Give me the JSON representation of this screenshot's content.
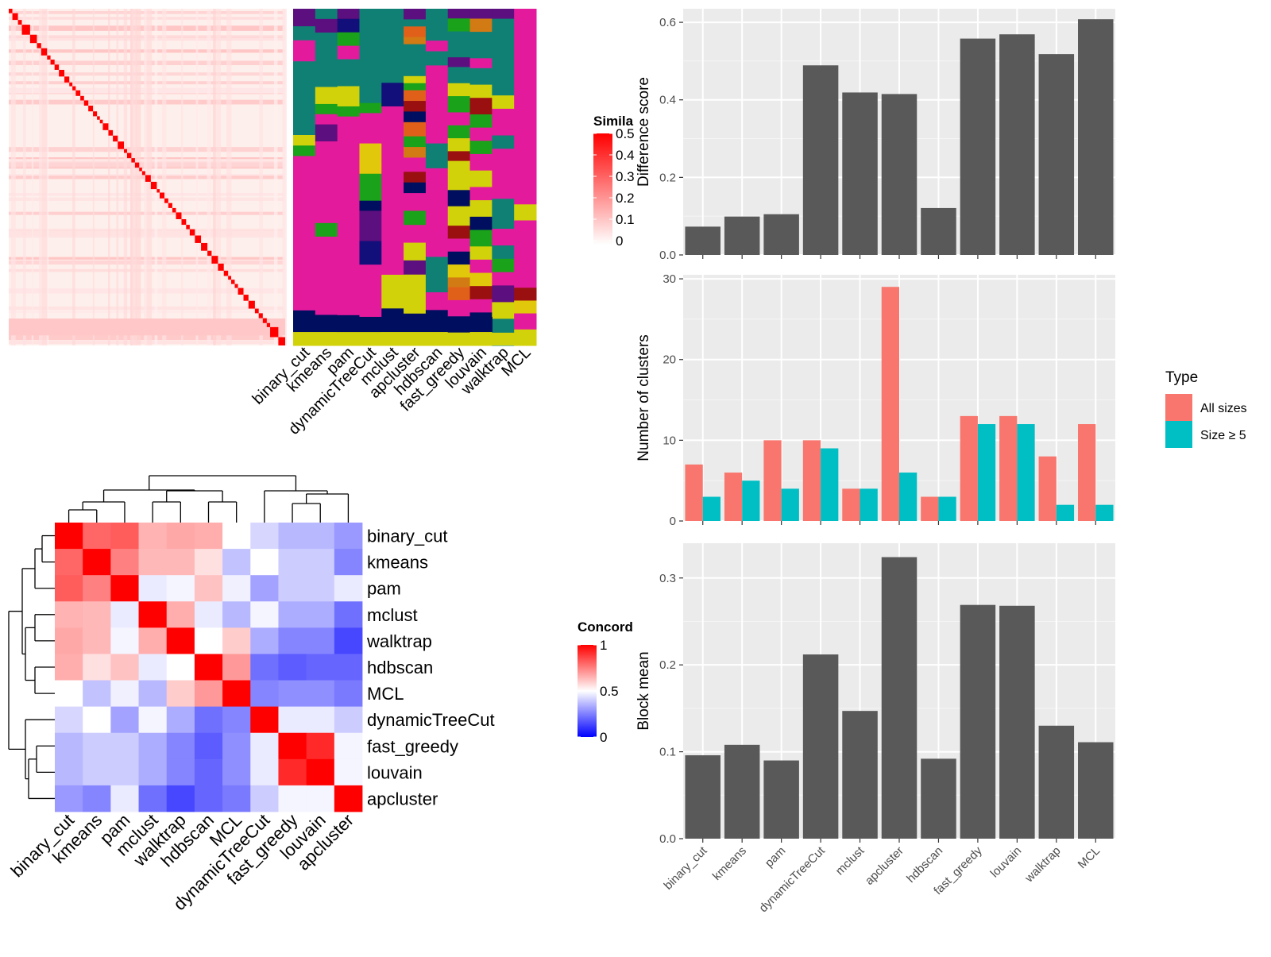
{
  "legends": {
    "similarity": {
      "title": "Simila",
      "ticks": [
        "0.5",
        "0.4",
        "0.3",
        "0.2",
        "0.1",
        "0"
      ],
      "color_low": "#ffffff",
      "color_high": "#ff0000"
    },
    "concordance": {
      "title": "Concord",
      "ticks": [
        "1",
        "0.5",
        "0"
      ],
      "color_low": "#0000ff",
      "color_mid": "#ffffff",
      "color_high": "#ff0000"
    },
    "type": {
      "title": "Type",
      "items": [
        {
          "label": "All sizes",
          "color": "#F8766D"
        },
        {
          "label": "Size ≥ 5",
          "color": "#00BFC4"
        }
      ]
    }
  },
  "chart_data": [
    {
      "type": "heatmap",
      "name": "similarity-matrix",
      "value_range": [
        0,
        0.5
      ],
      "description_colors": {
        "low": "#ffffff",
        "high": "#ff0000"
      },
      "diagonal_blocks": 60
    },
    {
      "type": "heatmap",
      "name": "cluster-membership",
      "categories": [
        "binary_cut",
        "kmeans",
        "pam",
        "dynamicTreeCut",
        "mclust",
        "apcluster",
        "hdbscan",
        "fast_greedy",
        "louvain",
        "walktrap",
        "MCL"
      ],
      "palette": [
        "#E41A9D",
        "#108074",
        "#120F7A",
        "#E1C80A",
        "#1AA21A",
        "#5C0F7E",
        "#D2D20A",
        "#E0601A",
        "#9A1010",
        "#000E60",
        "#D27A14"
      ]
    },
    {
      "type": "heatmap",
      "name": "concordance-matrix",
      "rows": [
        "binary_cut",
        "kmeans",
        "pam",
        "mclust",
        "walktrap",
        "hdbscan",
        "MCL",
        "dynamicTreeCut",
        "fast_greedy",
        "louvain",
        "apcluster"
      ],
      "columns": [
        "binary_cut",
        "kmeans",
        "pam",
        "mclust",
        "walktrap",
        "hdbscan",
        "MCL",
        "dynamicTreeCut",
        "fast_greedy",
        "louvain",
        "apcluster"
      ],
      "value_range": [
        0,
        1
      ],
      "values": [
        [
          1.0,
          0.8,
          0.82,
          0.65,
          0.67,
          0.66,
          0.5,
          0.42,
          0.36,
          0.36,
          0.3
        ],
        [
          0.8,
          1.0,
          0.75,
          0.64,
          0.64,
          0.56,
          0.38,
          0.5,
          0.4,
          0.4,
          0.26
        ],
        [
          0.82,
          0.75,
          1.0,
          0.46,
          0.48,
          0.62,
          0.47,
          0.32,
          0.4,
          0.4,
          0.46
        ],
        [
          0.65,
          0.64,
          0.46,
          1.0,
          0.66,
          0.46,
          0.36,
          0.48,
          0.34,
          0.34,
          0.22
        ],
        [
          0.67,
          0.64,
          0.48,
          0.66,
          1.0,
          0.5,
          0.6,
          0.34,
          0.26,
          0.26,
          0.14
        ],
        [
          0.66,
          0.56,
          0.62,
          0.46,
          0.5,
          1.0,
          0.7,
          0.22,
          0.18,
          0.2,
          0.2
        ],
        [
          0.5,
          0.38,
          0.47,
          0.36,
          0.6,
          0.7,
          1.0,
          0.26,
          0.28,
          0.28,
          0.24
        ],
        [
          0.42,
          0.5,
          0.32,
          0.48,
          0.34,
          0.22,
          0.26,
          1.0,
          0.46,
          0.46,
          0.4
        ],
        [
          0.36,
          0.4,
          0.4,
          0.34,
          0.26,
          0.18,
          0.28,
          0.46,
          1.0,
          0.92,
          0.48
        ],
        [
          0.36,
          0.4,
          0.4,
          0.34,
          0.26,
          0.2,
          0.28,
          0.46,
          0.92,
          1.0,
          0.48
        ],
        [
          0.3,
          0.26,
          0.46,
          0.22,
          0.14,
          0.2,
          0.24,
          0.4,
          0.48,
          0.48,
          1.0
        ]
      ]
    },
    {
      "type": "bar",
      "name": "difference-score",
      "categories": [
        "binary_cut",
        "kmeans",
        "pam",
        "dynamicTreeCut",
        "mclust",
        "apcluster",
        "hdbscan",
        "fast_greedy",
        "louvain",
        "walktrap",
        "MCL"
      ],
      "values": [
        0.073,
        0.099,
        0.105,
        0.489,
        0.419,
        0.415,
        0.121,
        0.558,
        0.569,
        0.518,
        0.608
      ],
      "ylabel": "Difference score",
      "ylim": [
        0,
        0.635
      ],
      "yticks": [
        0.0,
        0.2,
        0.4,
        0.6
      ],
      "ytick_labels": [
        "0.0",
        "0.2",
        "0.4",
        "0.6"
      ],
      "color": "#595959"
    },
    {
      "type": "bar",
      "name": "number-of-clusters",
      "categories": [
        "binary_cut",
        "kmeans",
        "pam",
        "dynamicTreeCut",
        "mclust",
        "apcluster",
        "hdbscan",
        "fast_greedy",
        "louvain",
        "walktrap",
        "MCL"
      ],
      "series": [
        {
          "name": "All sizes",
          "values": [
            7,
            6,
            10,
            10,
            4,
            29,
            3,
            13,
            13,
            8,
            12
          ]
        },
        {
          "name": "Size ≥ 5",
          "values": [
            3,
            5,
            4,
            9,
            4,
            6,
            3,
            12,
            12,
            2,
            2
          ]
        }
      ],
      "ylabel": "Number of clusters",
      "ylim": [
        0,
        30.5
      ],
      "yticks": [
        0,
        10,
        20,
        30
      ],
      "ytick_labels": [
        "0",
        "10",
        "20",
        "30"
      ]
    },
    {
      "type": "bar",
      "name": "block-mean",
      "categories": [
        "binary_cut",
        "kmeans",
        "pam",
        "dynamicTreeCut",
        "mclust",
        "apcluster",
        "hdbscan",
        "fast_greedy",
        "louvain",
        "walktrap",
        "MCL"
      ],
      "values": [
        0.096,
        0.108,
        0.09,
        0.212,
        0.147,
        0.324,
        0.092,
        0.269,
        0.268,
        0.13,
        0.111
      ],
      "ylabel": "Block mean",
      "ylim": [
        0,
        0.34
      ],
      "yticks": [
        0.0,
        0.1,
        0.2,
        0.3
      ],
      "ytick_labels": [
        "0.0",
        "0.1",
        "0.2",
        "0.3"
      ],
      "color": "#595959"
    }
  ]
}
